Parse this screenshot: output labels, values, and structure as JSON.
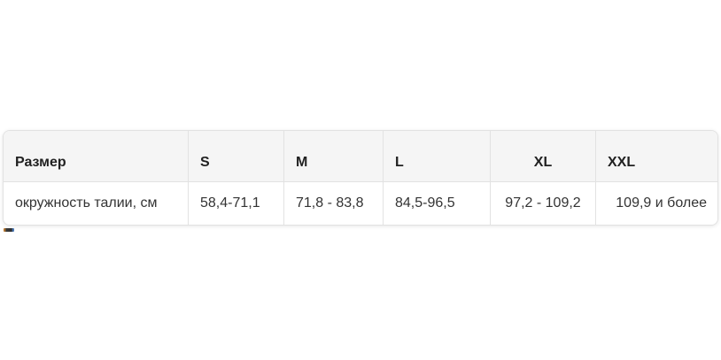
{
  "table": {
    "columns": [
      {
        "header": "Размер"
      },
      {
        "header": "S"
      },
      {
        "header": "M"
      },
      {
        "header": "L"
      },
      {
        "header": "XL"
      },
      {
        "header": "XXL"
      }
    ],
    "rows": [
      {
        "cells": [
          "окружность талии, см",
          "58,4-71,1",
          "71,8 - 83,8",
          "84,5-96,5",
          "97,2 - 109,2",
          "109,9 и более"
        ]
      }
    ],
    "colors": {
      "header_bg": "#f5f5f5",
      "border": "#e2e2e2",
      "header_text": "#212121",
      "cell_text": "#333333"
    }
  },
  "chart_data": {
    "type": "table",
    "columns": [
      "Размер",
      "S",
      "M",
      "L",
      "XL",
      "XXL"
    ],
    "rows": [
      [
        "окружность талии, см",
        "58,4-71,1",
        "71,8 - 83,8",
        "84,5-96,5",
        "97,2 - 109,2",
        "109,9 и более"
      ]
    ]
  },
  "artifact": {
    "name": "tiny-collapsed-image",
    "colors": [
      "#b5762f",
      "#2e2e2e",
      "#4a78b5"
    ]
  }
}
